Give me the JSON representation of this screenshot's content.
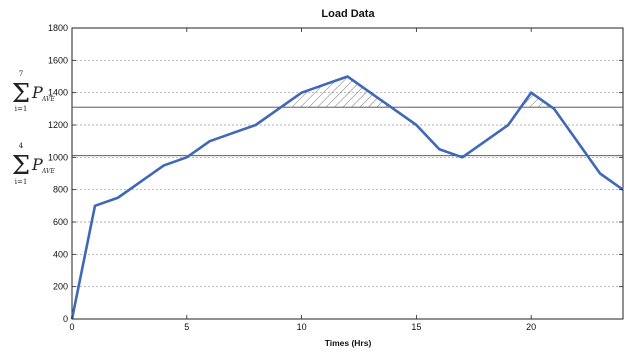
{
  "chart_data": {
    "type": "line",
    "title": "Load Data",
    "xlabel": "Times (Hrs)",
    "ylabel": "",
    "xlim": [
      0,
      24
    ],
    "ylim": [
      0,
      1800
    ],
    "x_ticks": [
      "0",
      "5",
      "10",
      "15",
      "20"
    ],
    "x_tick_values": [
      0,
      5,
      10,
      15,
      20
    ],
    "y_ticks": [
      "0",
      "200",
      "400",
      "600",
      "800",
      "1000",
      "1200",
      "1400",
      "1600",
      "1800"
    ],
    "y_tick_values": [
      0,
      200,
      400,
      600,
      800,
      1000,
      1200,
      1400,
      1600,
      1800
    ],
    "grid": "dashed horizontal",
    "series": [
      {
        "x": [
          0,
          1,
          2,
          3,
          4,
          5,
          6,
          7,
          8,
          9,
          10,
          11,
          12,
          13,
          14,
          15,
          16,
          17,
          18,
          19,
          20,
          21,
          22,
          23,
          24
        ],
        "y": [
          0,
          700,
          750,
          850,
          950,
          1000,
          1100,
          1150,
          1200,
          1300,
          1400,
          1450,
          1500,
          1400,
          1300,
          1200,
          1050,
          1000,
          1100,
          1200,
          1400,
          1300,
          1100,
          900,
          800
        ],
        "color": "#3f68b8"
      }
    ],
    "reference_lines": [
      {
        "y": 1310,
        "label_top": "7",
        "label_bottom": "i=1",
        "label_main": "P",
        "label_sub": "AVE"
      },
      {
        "y": 1010,
        "label_top": "4",
        "label_bottom": "i=1",
        "label_main": "P",
        "label_sub": "AVE"
      }
    ],
    "shaded_regions": "areas above the upper reference line are hatched"
  }
}
